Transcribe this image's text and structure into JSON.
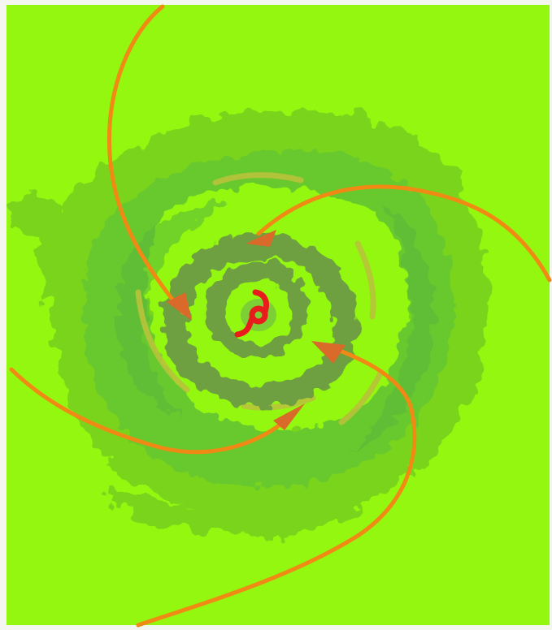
{
  "map": {
    "colors": {
      "background": "#93f70f",
      "outer_band": "#7ad41f",
      "mid_band": "#68c92e",
      "inner_band": "#55b43a",
      "eyewall": "#6e9f3f",
      "rain_core": "#b9c23a",
      "inflow_arrow": "#f08a14",
      "arrow_head": "#d96a2a",
      "cyclone_symbol": "#e81c1c",
      "frame": "#f4f7f0"
    },
    "icons": {
      "center": "hurricane-symbol-icon",
      "flow": "inflow-arrow-icon"
    }
  }
}
